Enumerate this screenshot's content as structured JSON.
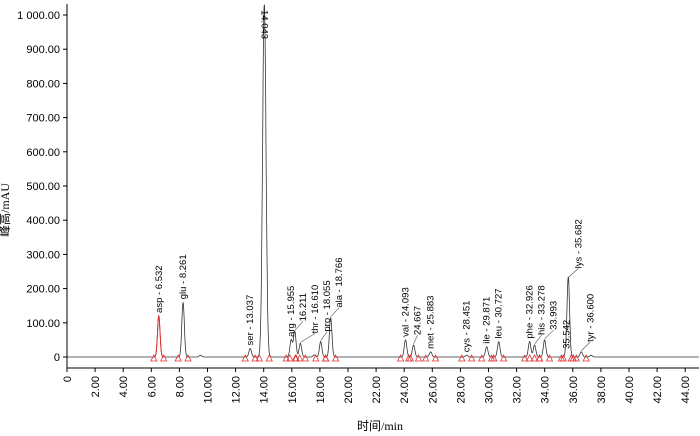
{
  "chart_data": {
    "type": "line",
    "xlabel": "时间/min",
    "ylabel": "峰高/mAU",
    "xlim": [
      0,
      45
    ],
    "ylim": [
      -30,
      1030
    ],
    "xticks": [
      "0",
      "2.00",
      "4.00",
      "6.00",
      "8.00",
      "10.00",
      "12.00",
      "14.00",
      "16.00",
      "18.00",
      "20.00",
      "22.00",
      "24.00",
      "26.00",
      "28.00",
      "30.00",
      "32.00",
      "34.00",
      "36.00",
      "38.00",
      "40.00",
      "42.00",
      "44.00"
    ],
    "yticks": [
      "0",
      "100.00",
      "200.00",
      "300.00",
      "400.00",
      "500.00",
      "600.00",
      "700.00",
      "800.00",
      "900.00",
      "1 000.00"
    ],
    "peaks": [
      {
        "t": 6.532,
        "h": 120,
        "label": "asp - 6.532",
        "color": "#e03030"
      },
      {
        "t": 8.261,
        "h": 160,
        "label": "glu - 8.261"
      },
      {
        "t": 9.5,
        "h": 5,
        "label": ""
      },
      {
        "t": 13.037,
        "h": 25,
        "label": "ser - 13.037"
      },
      {
        "t": 14.043,
        "h": 1040,
        "label": "14.043"
      },
      {
        "t": 15.955,
        "h": 50,
        "label": "arg - 15.955"
      },
      {
        "t": 16.211,
        "h": 75,
        "label": "16.211"
      },
      {
        "t": 16.61,
        "h": 40,
        "label": "thr - 16.610"
      },
      {
        "t": 17.6,
        "h": 6,
        "label": ""
      },
      {
        "t": 18.055,
        "h": 45,
        "label": "pro - 18.055"
      },
      {
        "t": 18.766,
        "h": 115,
        "label": "ala - 18.766"
      },
      {
        "t": 24.093,
        "h": 50,
        "label": "val - 24.093"
      },
      {
        "t": 24.667,
        "h": 35,
        "label": "24.667"
      },
      {
        "t": 25.883,
        "h": 15,
        "label": "met - 25.883"
      },
      {
        "t": 28.451,
        "h": 5,
        "label": "cys - 28.451"
      },
      {
        "t": 29.871,
        "h": 30,
        "label": "ile - 29.871"
      },
      {
        "t": 30.727,
        "h": 45,
        "label": "leu - 30.727"
      },
      {
        "t": 32.926,
        "h": 45,
        "label": "phe - 32.926"
      },
      {
        "t": 33.278,
        "h": 35,
        "label": "his - 33.278"
      },
      {
        "t": 33.993,
        "h": 50,
        "label": "33.993"
      },
      {
        "t": 35.542,
        "h": 15,
        "label": "35.542"
      },
      {
        "t": 35.682,
        "h": 230,
        "label": "lys - 35.682"
      },
      {
        "t": 36.6,
        "h": 15,
        "label": "tyr - 36.600"
      },
      {
        "t": 37.3,
        "h": 5,
        "label": ""
      }
    ]
  }
}
